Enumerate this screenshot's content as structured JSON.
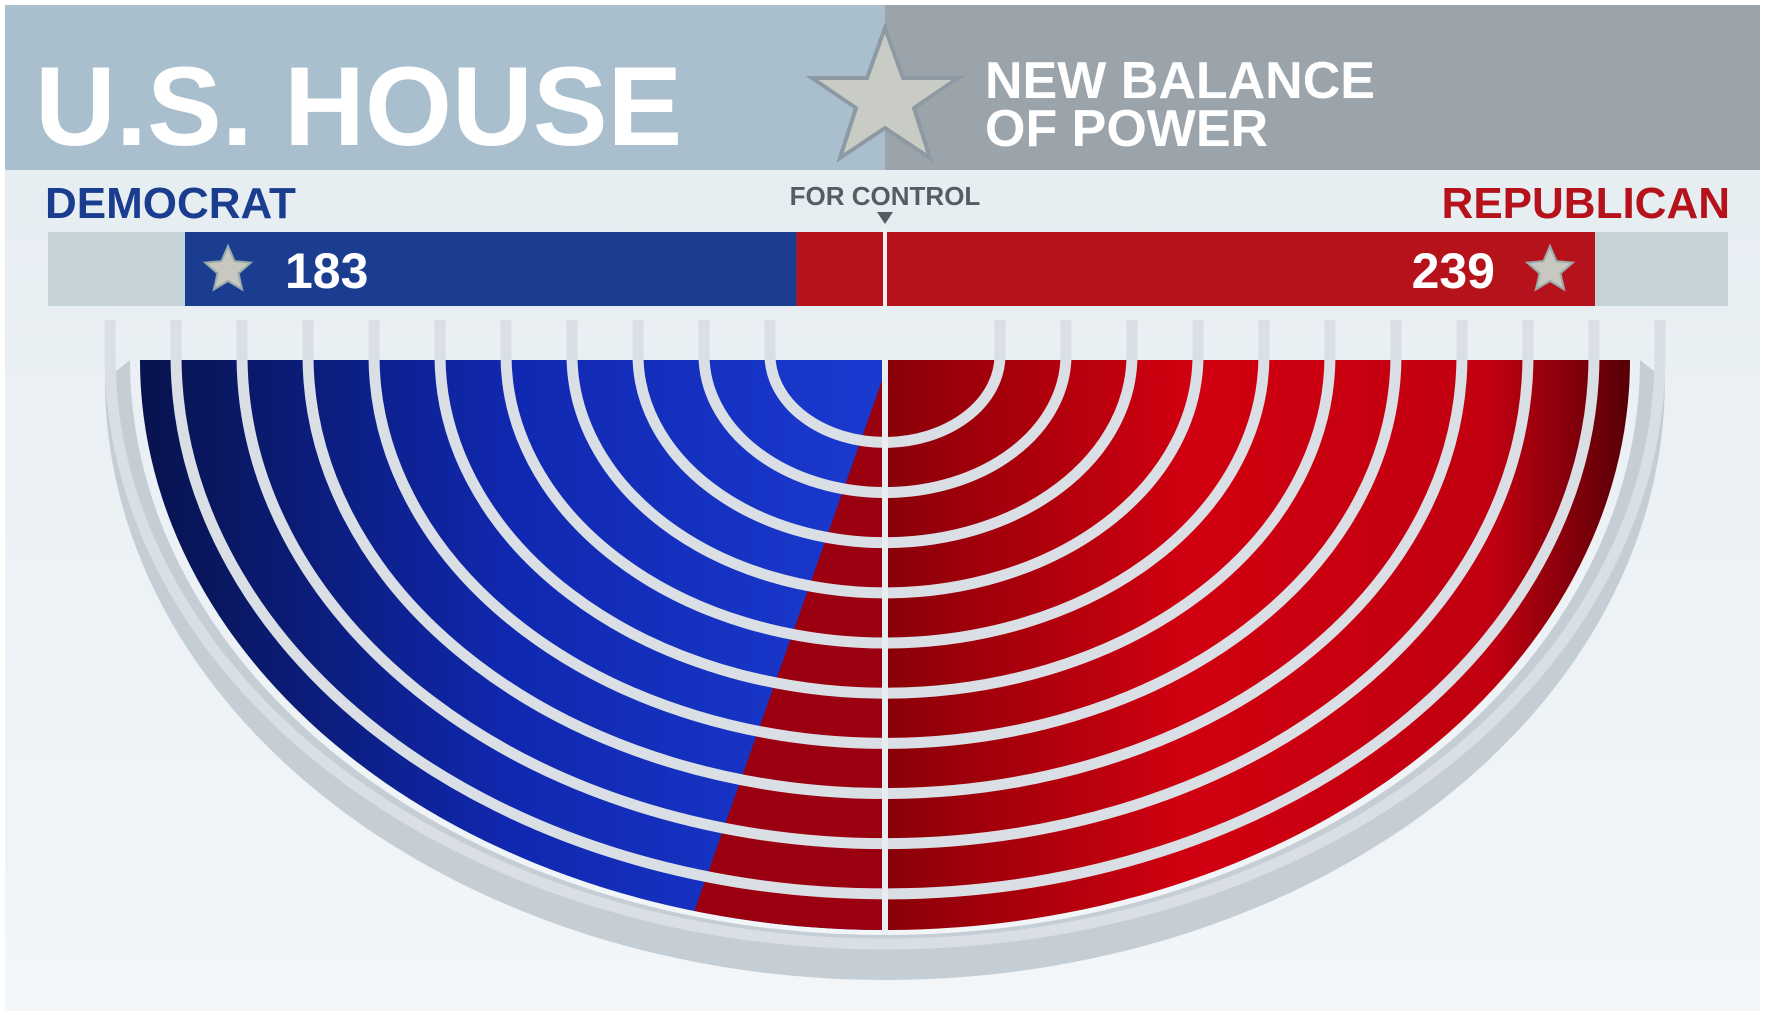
{
  "header": {
    "title": "U.S. HOUSE",
    "subtitle_line1": "NEW BALANCE",
    "subtitle_line2": "OF POWER"
  },
  "control_label": "FOR CONTROL",
  "parties": [
    {
      "name": "DEMOCRAT",
      "seats": 183,
      "color": "#1b3d8f"
    },
    {
      "name": "REPUBLICAN",
      "seats": 239,
      "color": "#b5121b"
    }
  ]
}
